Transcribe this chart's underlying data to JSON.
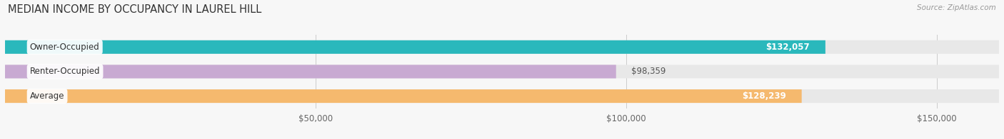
{
  "title": "MEDIAN INCOME BY OCCUPANCY IN LAUREL HILL",
  "source": "Source: ZipAtlas.com",
  "categories": [
    "Owner-Occupied",
    "Renter-Occupied",
    "Average"
  ],
  "values": [
    132057,
    98359,
    128239
  ],
  "bar_colors": [
    "#2ab8bc",
    "#c8aad2",
    "#f5b96e"
  ],
  "label_colors": [
    "#ffffff",
    "#666666",
    "#ffffff"
  ],
  "value_labels": [
    "$132,057",
    "$98,359",
    "$128,239"
  ],
  "xlim": [
    0,
    160000
  ],
  "xticks": [
    0,
    50000,
    100000,
    150000
  ],
  "xticklabels": [
    "",
    "$50,000",
    "$100,000",
    "$150,000"
  ],
  "figsize": [
    14.06,
    1.96
  ],
  "dpi": 100,
  "bar_height": 0.55,
  "background_color": "#f7f7f7",
  "bar_bg_color": "#e8e8e8",
  "title_fontsize": 10.5,
  "label_fontsize": 8.5,
  "value_fontsize": 8.5,
  "tick_fontsize": 8.5,
  "source_fontsize": 7.5
}
